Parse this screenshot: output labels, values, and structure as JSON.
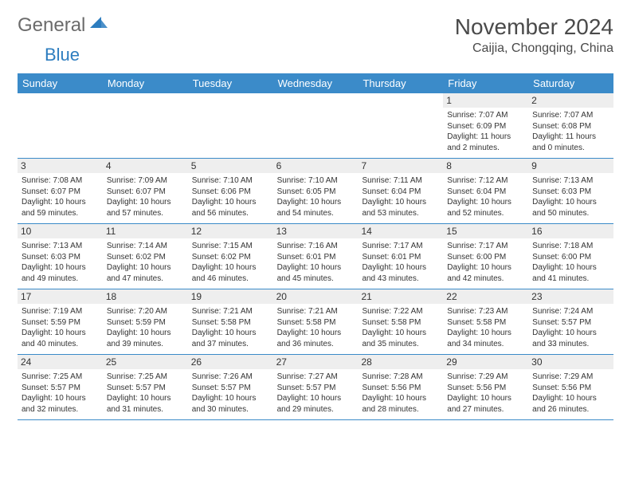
{
  "brand": {
    "part1": "General",
    "part2": "Blue"
  },
  "title": "November 2024",
  "location": "Caijia, Chongqing, China",
  "colors": {
    "header_bg": "#3b8bc9",
    "header_text": "#ffffff",
    "daynum_bg": "#eeeeee",
    "row_border": "#3b8bc9",
    "body_text": "#333333",
    "title_text": "#4a4a4a",
    "logo_gray": "#6b6b6b",
    "logo_blue": "#2d7dbf"
  },
  "weekdays": [
    "Sunday",
    "Monday",
    "Tuesday",
    "Wednesday",
    "Thursday",
    "Friday",
    "Saturday"
  ],
  "weeks": [
    [
      null,
      null,
      null,
      null,
      null,
      {
        "d": "1",
        "sr": "7:07 AM",
        "ss": "6:09 PM",
        "dl": "11 hours and 2 minutes."
      },
      {
        "d": "2",
        "sr": "7:07 AM",
        "ss": "6:08 PM",
        "dl": "11 hours and 0 minutes."
      }
    ],
    [
      {
        "d": "3",
        "sr": "7:08 AM",
        "ss": "6:07 PM",
        "dl": "10 hours and 59 minutes."
      },
      {
        "d": "4",
        "sr": "7:09 AM",
        "ss": "6:07 PM",
        "dl": "10 hours and 57 minutes."
      },
      {
        "d": "5",
        "sr": "7:10 AM",
        "ss": "6:06 PM",
        "dl": "10 hours and 56 minutes."
      },
      {
        "d": "6",
        "sr": "7:10 AM",
        "ss": "6:05 PM",
        "dl": "10 hours and 54 minutes."
      },
      {
        "d": "7",
        "sr": "7:11 AM",
        "ss": "6:04 PM",
        "dl": "10 hours and 53 minutes."
      },
      {
        "d": "8",
        "sr": "7:12 AM",
        "ss": "6:04 PM",
        "dl": "10 hours and 52 minutes."
      },
      {
        "d": "9",
        "sr": "7:13 AM",
        "ss": "6:03 PM",
        "dl": "10 hours and 50 minutes."
      }
    ],
    [
      {
        "d": "10",
        "sr": "7:13 AM",
        "ss": "6:03 PM",
        "dl": "10 hours and 49 minutes."
      },
      {
        "d": "11",
        "sr": "7:14 AM",
        "ss": "6:02 PM",
        "dl": "10 hours and 47 minutes."
      },
      {
        "d": "12",
        "sr": "7:15 AM",
        "ss": "6:02 PM",
        "dl": "10 hours and 46 minutes."
      },
      {
        "d": "13",
        "sr": "7:16 AM",
        "ss": "6:01 PM",
        "dl": "10 hours and 45 minutes."
      },
      {
        "d": "14",
        "sr": "7:17 AM",
        "ss": "6:01 PM",
        "dl": "10 hours and 43 minutes."
      },
      {
        "d": "15",
        "sr": "7:17 AM",
        "ss": "6:00 PM",
        "dl": "10 hours and 42 minutes."
      },
      {
        "d": "16",
        "sr": "7:18 AM",
        "ss": "6:00 PM",
        "dl": "10 hours and 41 minutes."
      }
    ],
    [
      {
        "d": "17",
        "sr": "7:19 AM",
        "ss": "5:59 PM",
        "dl": "10 hours and 40 minutes."
      },
      {
        "d": "18",
        "sr": "7:20 AM",
        "ss": "5:59 PM",
        "dl": "10 hours and 39 minutes."
      },
      {
        "d": "19",
        "sr": "7:21 AM",
        "ss": "5:58 PM",
        "dl": "10 hours and 37 minutes."
      },
      {
        "d": "20",
        "sr": "7:21 AM",
        "ss": "5:58 PM",
        "dl": "10 hours and 36 minutes."
      },
      {
        "d": "21",
        "sr": "7:22 AM",
        "ss": "5:58 PM",
        "dl": "10 hours and 35 minutes."
      },
      {
        "d": "22",
        "sr": "7:23 AM",
        "ss": "5:58 PM",
        "dl": "10 hours and 34 minutes."
      },
      {
        "d": "23",
        "sr": "7:24 AM",
        "ss": "5:57 PM",
        "dl": "10 hours and 33 minutes."
      }
    ],
    [
      {
        "d": "24",
        "sr": "7:25 AM",
        "ss": "5:57 PM",
        "dl": "10 hours and 32 minutes."
      },
      {
        "d": "25",
        "sr": "7:25 AM",
        "ss": "5:57 PM",
        "dl": "10 hours and 31 minutes."
      },
      {
        "d": "26",
        "sr": "7:26 AM",
        "ss": "5:57 PM",
        "dl": "10 hours and 30 minutes."
      },
      {
        "d": "27",
        "sr": "7:27 AM",
        "ss": "5:57 PM",
        "dl": "10 hours and 29 minutes."
      },
      {
        "d": "28",
        "sr": "7:28 AM",
        "ss": "5:56 PM",
        "dl": "10 hours and 28 minutes."
      },
      {
        "d": "29",
        "sr": "7:29 AM",
        "ss": "5:56 PM",
        "dl": "10 hours and 27 minutes."
      },
      {
        "d": "30",
        "sr": "7:29 AM",
        "ss": "5:56 PM",
        "dl": "10 hours and 26 minutes."
      }
    ]
  ],
  "labels": {
    "sunrise": "Sunrise:",
    "sunset": "Sunset:",
    "daylight": "Daylight:"
  }
}
